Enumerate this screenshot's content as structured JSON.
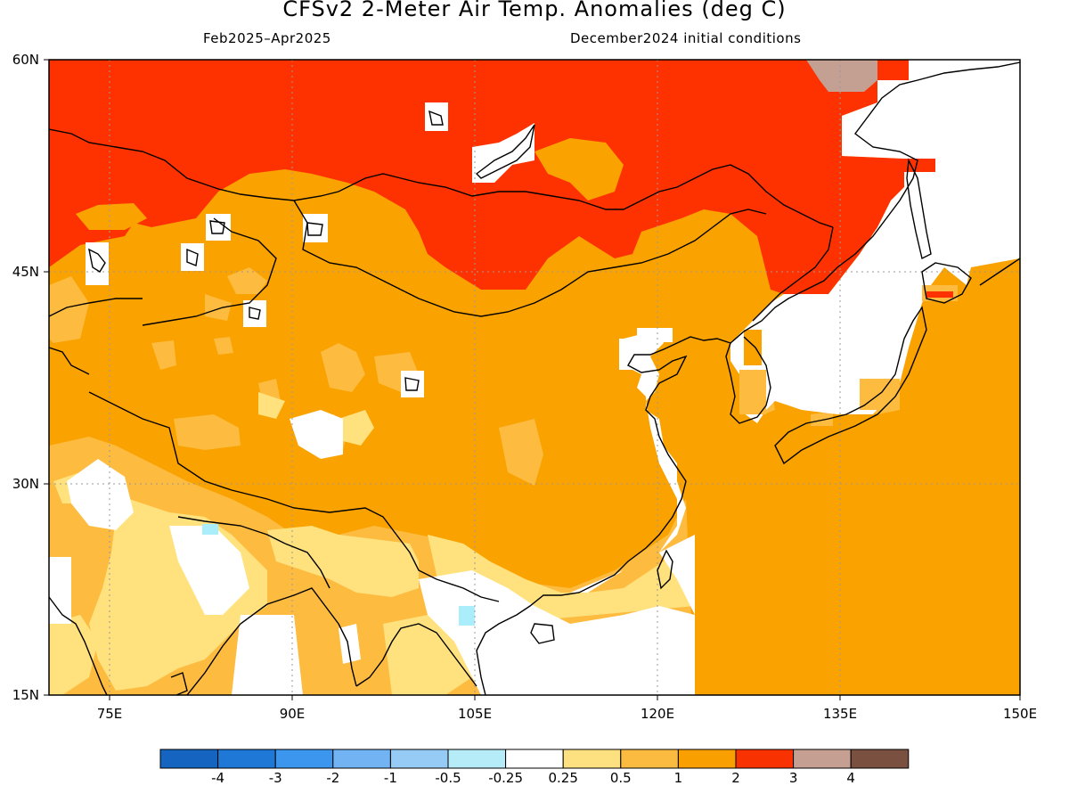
{
  "title": "CFSv2 2-Meter Air Temp. Anomalies (deg C)",
  "subtitle_left": "Feb2025–Apr2025",
  "subtitle_right": "December2024 initial conditions",
  "map": {
    "lon_range": [
      70,
      150
    ],
    "lat_range": [
      15,
      60
    ],
    "lat_labels": [
      "60N",
      "45N",
      "30N",
      "15N"
    ],
    "lon_labels": [
      "75E",
      "90E",
      "105E",
      "120E",
      "135E",
      "150E"
    ],
    "grid_lines": "dotted",
    "ocean_masked": true
  },
  "colors": {
    "anom_0_25_0_5": "#ffe27d",
    "anom_0_5_1": "#fdbb40",
    "anom_1_2": "#f9a200",
    "anom_2_3": "#fe3200",
    "anom_3_4": "#c3a092",
    "anom_neg_0_25": "#aaedfb",
    "anom_neutral": "#ffffff"
  },
  "colorbar": {
    "colors": [
      "#1565c0",
      "#1f78d6",
      "#3d96ee",
      "#72b3f3",
      "#96cbf5",
      "#b5ecf7",
      "#ffffff",
      "#fde07f",
      "#fbba40",
      "#f9a000",
      "#f83200",
      "#c5a092",
      "#7a5040"
    ],
    "labels": [
      "-4",
      "-3",
      "-2",
      "-1",
      "-0.5",
      "-0.25",
      "0.25",
      "0.5",
      "1",
      "2",
      "3",
      "4"
    ]
  }
}
